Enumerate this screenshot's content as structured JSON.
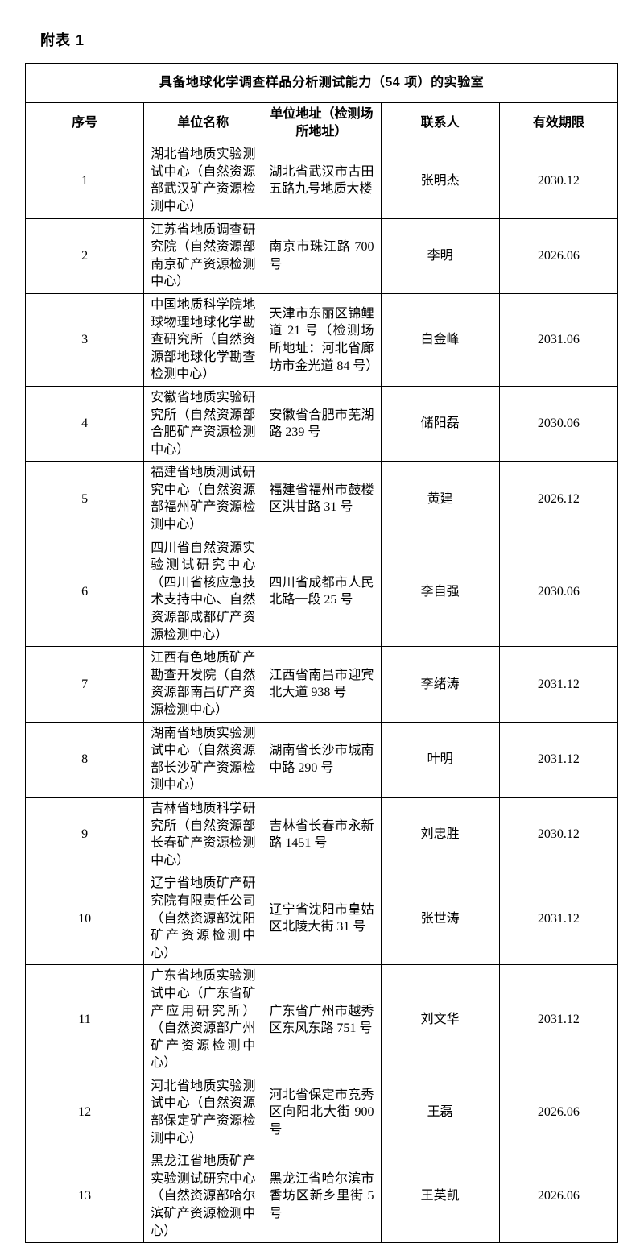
{
  "page": {
    "label": "附表 1"
  },
  "table": {
    "title": "具备地球化学调查样品分析测试能力（54 项）的实验室",
    "columns": [
      "序号",
      "单位名称",
      "单位地址（检测场所地址）",
      "联系人",
      "有效期限"
    ],
    "rows": [
      {
        "no": "1",
        "name": "湖北省地质实验测试中心（自然资源部武汉矿产资源检测中心）",
        "address": "湖北省武汉市古田五路九号地质大楼",
        "contact": "张明杰",
        "validity": "2030.12"
      },
      {
        "no": "2",
        "name": "江苏省地质调查研究院（自然资源部南京矿产资源检测中心）",
        "address": "南京市珠江路 700 号",
        "contact": "李明",
        "validity": "2026.06"
      },
      {
        "no": "3",
        "name": "中国地质科学院地球物理地球化学勘查研究所（自然资源部地球化学勘查检测中心）",
        "address": "天津市东丽区锦鲤道 21 号（检测场所地址：河北省廊坊市金光道 84 号）",
        "contact": "白金峰",
        "validity": "2031.06"
      },
      {
        "no": "4",
        "name": "安徽省地质实验研究所（自然资源部合肥矿产资源检测中心）",
        "address": "安徽省合肥市芜湖路 239 号",
        "contact": "储阳磊",
        "validity": "2030.06"
      },
      {
        "no": "5",
        "name": "福建省地质测试研究中心（自然资源部福州矿产资源检测中心）",
        "address": "福建省福州市鼓楼区洪甘路 31 号",
        "contact": "黄建",
        "validity": "2026.12"
      },
      {
        "no": "6",
        "name": "四川省自然资源实验测试研究中心（四川省核应急技术支持中心、自然资源部成都矿产资源检测中心）",
        "address": "四川省成都市人民北路一段 25 号",
        "contact": "李自强",
        "validity": "2030.06"
      },
      {
        "no": "7",
        "name": "江西有色地质矿产勘查开发院（自然资源部南昌矿产资源检测中心）",
        "address": "江西省南昌市迎宾北大道 938 号",
        "contact": "李绪涛",
        "validity": "2031.12"
      },
      {
        "no": "8",
        "name": "湖南省地质实验测试中心（自然资源部长沙矿产资源检测中心）",
        "address": "湖南省长沙市城南中路 290 号",
        "contact": "叶明",
        "validity": "2031.12"
      },
      {
        "no": "9",
        "name": "吉林省地质科学研究所（自然资源部长春矿产资源检测中心）",
        "address": "吉林省长春市永新路 1451 号",
        "contact": "刘忠胜",
        "validity": "2030.12"
      },
      {
        "no": "10",
        "name": "辽宁省地质矿产研究院有限责任公司（自然资源部沈阳矿产资源检测中心）",
        "address": "辽宁省沈阳市皇姑区北陵大街 31 号",
        "contact": "张世涛",
        "validity": "2031.12"
      },
      {
        "no": "11",
        "name": "广东省地质实验测试中心（广东省矿产应用研究所）（自然资源部广州矿产资源检测中心）",
        "address": "广东省广州市越秀区东风东路 751 号",
        "contact": "刘文华",
        "validity": "2031.12"
      },
      {
        "no": "12",
        "name": "河北省地质实验测试中心（自然资源部保定矿产资源检测中心）",
        "address": "河北省保定市竞秀区向阳北大街 900 号",
        "contact": "王磊",
        "validity": "2026.06"
      },
      {
        "no": "13",
        "name": "黑龙江省地质矿产实验测试研究中心（自然资源部哈尔滨矿产资源检测中心）",
        "address": "黑龙江省哈尔滨市香坊区新乡里街 5 号",
        "contact": "王英凯",
        "validity": "2026.06"
      }
    ]
  }
}
